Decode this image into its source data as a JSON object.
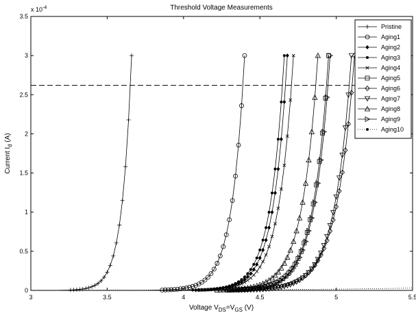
{
  "chart_data": {
    "type": "line",
    "title": "Threshold Voltage Measurements",
    "xlabel": {
      "base": "Voltage V",
      "sub1": "DS",
      "mid": "=V",
      "sub2": "GS",
      "unit": " (V)"
    },
    "ylabel": {
      "base": "Current I",
      "sub": "d",
      "unit": " (A)"
    },
    "y_multiplier": {
      "base": "x 10",
      "exp": "-4"
    },
    "xlim": [
      3,
      5.5
    ],
    "ylim": [
      0,
      3.5
    ],
    "x_ticks": [
      "3",
      "3.5",
      "4",
      "4.5",
      "5",
      "5.5"
    ],
    "y_ticks": [
      "0",
      "0.5",
      "1",
      "1.5",
      "2",
      "2.5",
      "3",
      "3.5"
    ],
    "reference_line": {
      "y": 2.62,
      "style": "dashed"
    },
    "legend_position": "top-right",
    "series": [
      {
        "name": "Pristine",
        "marker": "plus",
        "x_end": 3.66,
        "k": 16.0,
        "x_min": 3.0
      },
      {
        "name": "Aging1",
        "marker": "circle",
        "x_end": 4.4,
        "k": 12.0,
        "x_min": 3.0
      },
      {
        "name": "Aging2",
        "marker": "diamond-small",
        "x_end": 4.68,
        "k": 11.0,
        "x_min": 3.0
      },
      {
        "name": "Aging3",
        "marker": "dot",
        "x_end": 4.66,
        "k": 11.0,
        "x_min": 3.0
      },
      {
        "name": "Aging4",
        "marker": "x",
        "x_end": 4.72,
        "k": 10.5,
        "x_min": 3.0
      },
      {
        "name": "Aging5",
        "marker": "square",
        "x_end": 4.95,
        "k": 10.0,
        "x_min": 3.0
      },
      {
        "name": "Aging6",
        "marker": "diamond",
        "x_end": 5.12,
        "k": 8.6,
        "x_min": 3.0
      },
      {
        "name": "Aging7",
        "marker": "triangle-down",
        "x_end": 5.1,
        "k": 9.2,
        "x_min": 3.0
      },
      {
        "name": "Aging8",
        "marker": "triangle-up",
        "x_end": 4.88,
        "k": 9.8,
        "x_min": 3.0
      },
      {
        "name": "Aging9",
        "marker": "triangle-right",
        "x_end": 4.96,
        "k": 9.8,
        "x_min": 3.0
      },
      {
        "name": "Aging10",
        "marker": "dotted",
        "x_end": 5.5,
        "k": 1.2,
        "x_min": 3.0,
        "y_end": 0.03
      }
    ]
  }
}
